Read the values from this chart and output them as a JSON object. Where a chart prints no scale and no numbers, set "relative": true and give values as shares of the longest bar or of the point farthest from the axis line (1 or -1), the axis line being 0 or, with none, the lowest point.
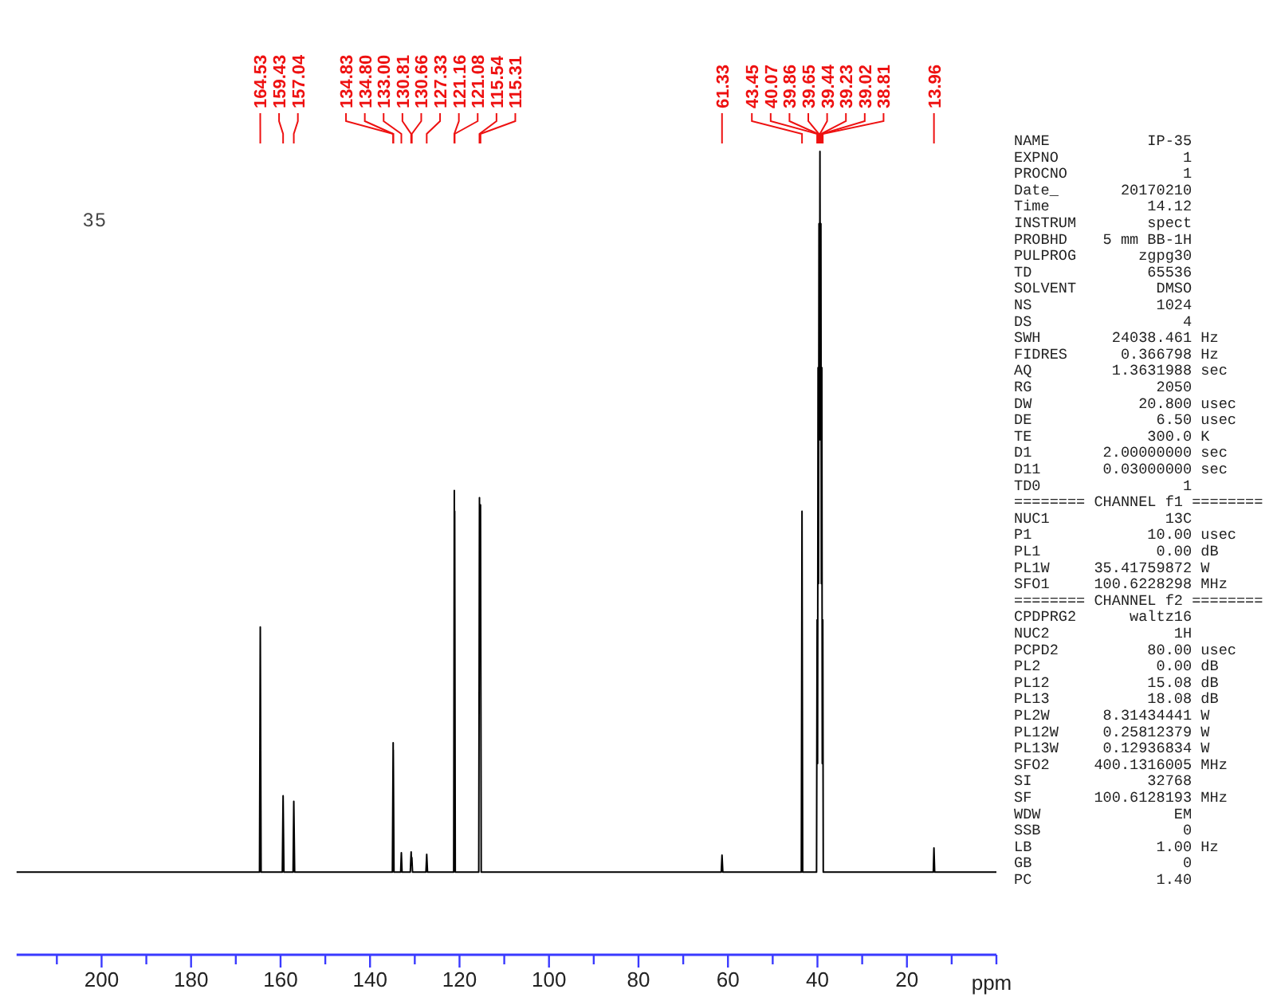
{
  "chart_data": {
    "type": "line",
    "relative": true,
    "xlabel": "ppm",
    "xlim": [
      219,
      0
    ],
    "xticks": [
      {
        "value": 210,
        "label": null
      },
      200,
      {
        "value": 190,
        "label": null
      },
      180,
      {
        "value": 170,
        "label": null
      },
      160,
      {
        "value": 150,
        "label": null
      },
      140,
      {
        "value": 130,
        "label": null
      },
      120,
      {
        "value": 110,
        "label": null
      },
      100,
      {
        "value": 90,
        "label": null
      },
      80,
      {
        "value": 70,
        "label": null
      },
      60,
      {
        "value": 50,
        "label": null
      },
      40,
      {
        "value": 30,
        "label": null
      },
      20,
      {
        "value": 10,
        "label": null
      },
      {
        "value": 0,
        "label": null
      }
    ],
    "series": [
      {
        "color": "#000000",
        "x": [
          219,
          164.7,
          164.53,
          164.35,
          159.6,
          159.43,
          159.25,
          157.2,
          157.04,
          156.85,
          135.0,
          134.83,
          134.815,
          134.8,
          134.65,
          133.15,
          133.0,
          132.85,
          131.0,
          130.81,
          130.74,
          130.66,
          130.5,
          127.5,
          127.33,
          127.15,
          121.3,
          121.16,
          121.12,
          121.08,
          120.95,
          115.7,
          115.54,
          115.43,
          115.31,
          115.15,
          61.5,
          61.33,
          61.15,
          43.6,
          43.45,
          43.3,
          40.2,
          40.07,
          39.97,
          39.86,
          39.76,
          39.65,
          39.55,
          39.44,
          39.34,
          39.23,
          39.13,
          39.02,
          38.92,
          38.81,
          38.7,
          14.1,
          13.96,
          13.8,
          0
        ],
        "values": [
          0.103,
          0.103,
          0.408,
          0.103,
          0.103,
          0.198,
          0.103,
          0.103,
          0.191,
          0.103,
          0.103,
          0.264,
          0.193,
          0.255,
          0.103,
          0.103,
          0.127,
          0.103,
          0.103,
          0.128,
          0.112,
          0.121,
          0.103,
          0.103,
          0.125,
          0.103,
          0.103,
          0.578,
          0.372,
          0.552,
          0.103,
          0.103,
          0.569,
          0.372,
          0.56,
          0.103,
          0.103,
          0.124,
          0.103,
          0.103,
          0.552,
          0.103,
          0.103,
          0.417,
          0.238,
          0.731,
          0.462,
          0.91,
          0.641,
          1.0,
          0.641,
          0.91,
          0.462,
          0.731,
          0.238,
          0.417,
          0.103,
          0.103,
          0.133,
          0.103,
          0.103
        ]
      }
    ],
    "annotations": [
      {
        "text": "164.53",
        "x": 164.53
      },
      {
        "text": "159.43",
        "x": 159.43
      },
      {
        "text": "157.04",
        "x": 157.04
      },
      {
        "text": "134.83",
        "x": 134.83
      },
      {
        "text": "134.80",
        "x": 134.8
      },
      {
        "text": "133.00",
        "x": 133.0
      },
      {
        "text": "130.81",
        "x": 130.81
      },
      {
        "text": "130.66",
        "x": 130.66
      },
      {
        "text": "127.33",
        "x": 127.33
      },
      {
        "text": "121.16",
        "x": 121.16
      },
      {
        "text": "121.08",
        "x": 121.08
      },
      {
        "text": "115.54",
        "x": 115.54
      },
      {
        "text": "115.31",
        "x": 115.31
      },
      {
        "text": "61.33",
        "x": 61.33
      },
      {
        "text": "43.45",
        "x": 43.45
      },
      {
        "text": "40.07",
        "x": 40.07
      },
      {
        "text": "39.86",
        "x": 39.86
      },
      {
        "text": "39.65",
        "x": 39.65
      },
      {
        "text": "39.44",
        "x": 39.44
      },
      {
        "text": "39.23",
        "x": 39.23
      },
      {
        "text": "39.02",
        "x": 39.02
      },
      {
        "text": "38.81",
        "x": 38.81
      },
      {
        "text": "13.96",
        "x": 13.96
      },
      "35",
      "NAME           IP-35",
      "EXPNO              1",
      "PROCNO             1",
      "Date_       20170210",
      "Time           14.12",
      "INSTRUM        spect",
      "PROBHD    5 mm BB-1H",
      "PULPROG       zgpg30",
      "TD             65536",
      "SOLVENT         DMSO",
      "NS              1024",
      "DS                 4",
      "SWH        24038.461 Hz",
      "FIDRES      0.366798 Hz",
      "AQ         1.3631988 sec",
      "RG              2050",
      "DW            20.800 usec",
      "DE              6.50 usec",
      "TE             300.0 K",
      "D1        2.00000000 sec",
      "D11       0.03000000 sec",
      "TD0                1",
      "======== CHANNEL f1 ========",
      "NUC1             13C",
      "P1             10.00 usec",
      "PL1             0.00 dB",
      "PL1W     35.41759872 W",
      "SFO1     100.6228298 MHz",
      "======== CHANNEL f2 ========",
      "CPDPRG2      waltz16",
      "NUC2              1H",
      "PCPD2          80.00 usec",
      "PL2             0.00 dB",
      "PL12           15.08 dB",
      "PL13           18.08 dB",
      "PL2W      8.31434441 W",
      "PL12W     0.25812379 W",
      "PL13W     0.12936834 W",
      "SFO2     400.1316005 MHz",
      "SI             32768",
      "SF       100.6128193 MHz",
      "WDW               EM",
      "SSB                0",
      "LB              1.00 Hz",
      "GB                 0",
      "PC              1.40"
    ]
  }
}
